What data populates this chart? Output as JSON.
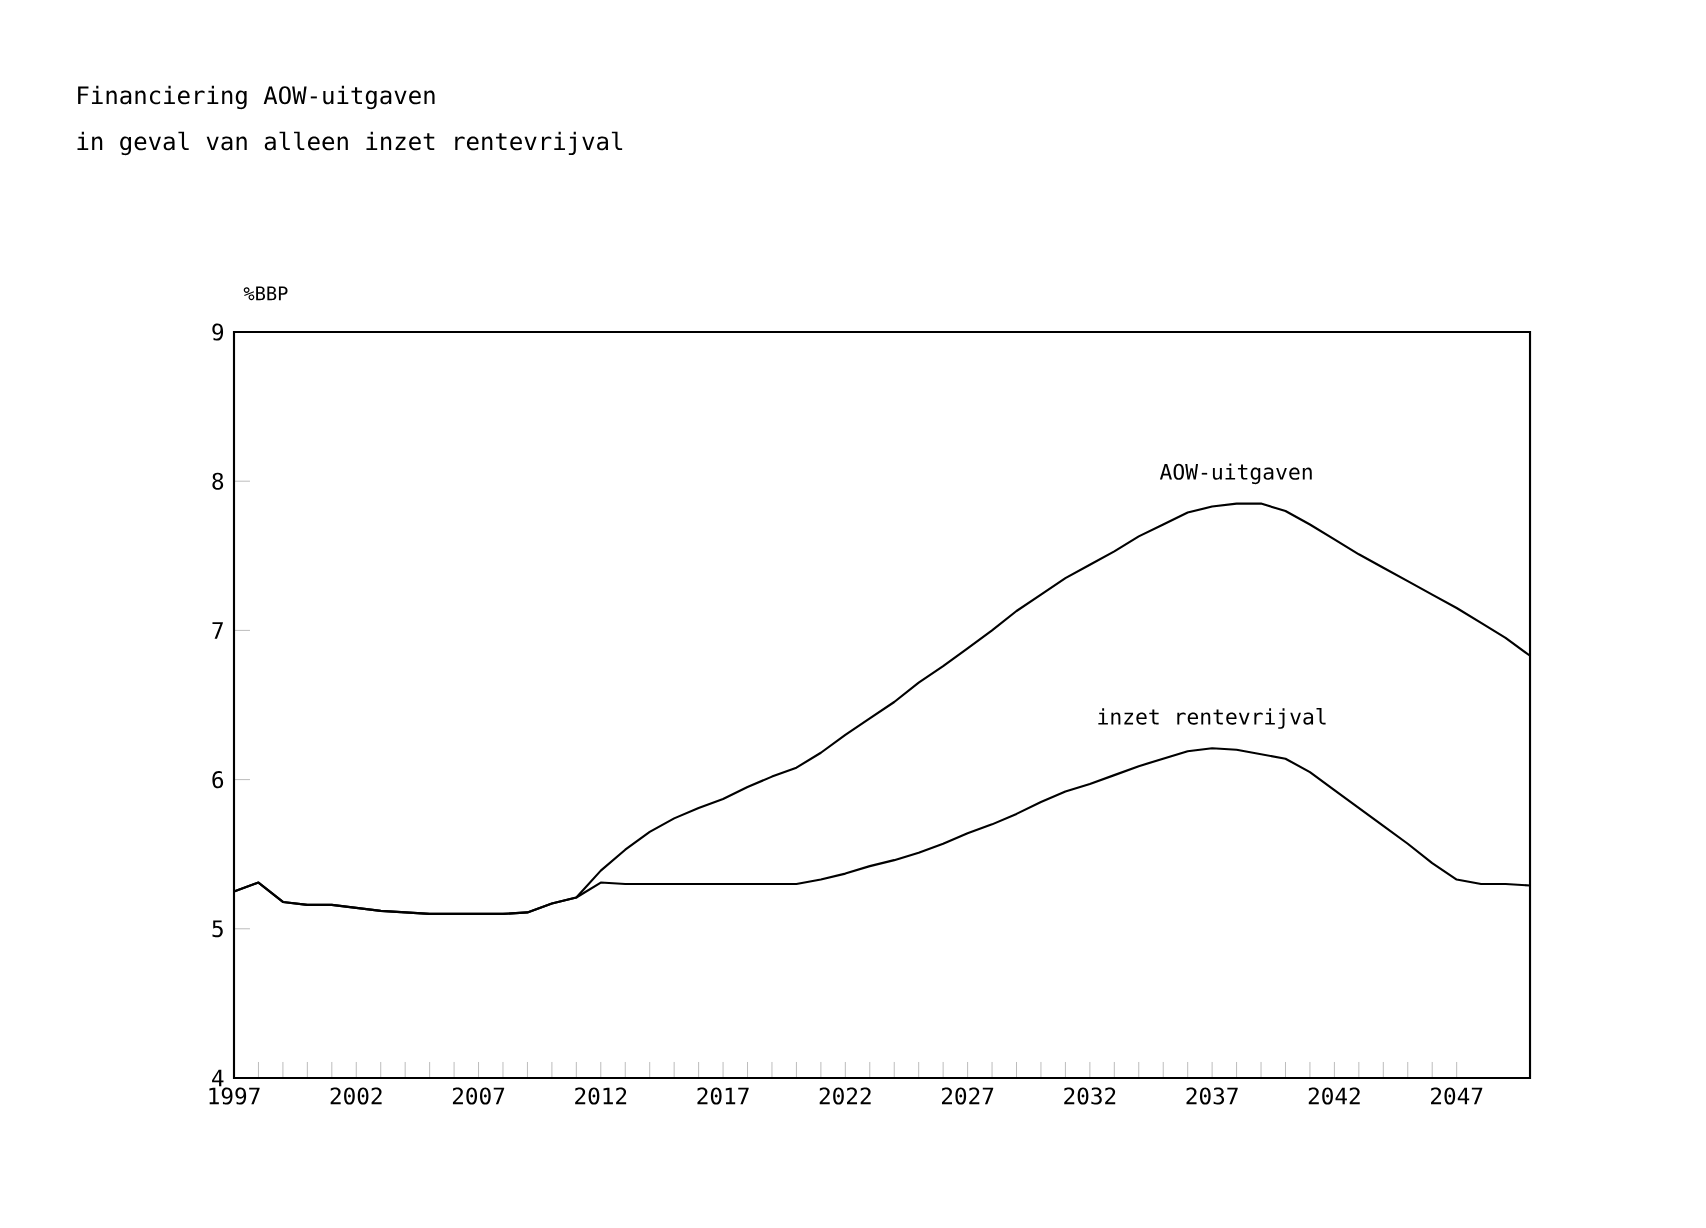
{
  "chart_data": {
    "type": "line",
    "title": "Financiering AOW-uitgaven",
    "subtitle": "in geval van alleen inzet rentevrijval",
    "ylabel": "%BBP",
    "x": [
      1997,
      1998,
      1999,
      2000,
      2001,
      2002,
      2003,
      2004,
      2005,
      2006,
      2007,
      2008,
      2009,
      2010,
      2011,
      2012,
      2013,
      2014,
      2015,
      2016,
      2017,
      2018,
      2019,
      2020,
      2021,
      2022,
      2023,
      2024,
      2025,
      2026,
      2027,
      2028,
      2029,
      2030,
      2031,
      2032,
      2033,
      2034,
      2035,
      2036,
      2037,
      2038,
      2039,
      2040,
      2041,
      2042,
      2043,
      2044,
      2045,
      2046,
      2047,
      2048,
      2049,
      2050
    ],
    "series": [
      {
        "name": "AOW-uitgaven",
        "color": "#000000",
        "values": [
          5.25,
          5.31,
          5.18,
          5.16,
          5.16,
          5.14,
          5.12,
          5.11,
          5.1,
          5.1,
          5.1,
          5.1,
          5.11,
          5.17,
          5.21,
          5.39,
          5.53,
          5.65,
          5.74,
          5.81,
          5.87,
          5.95,
          6.02,
          6.08,
          6.18,
          6.3,
          6.41,
          6.52,
          6.65,
          6.76,
          6.88,
          7.0,
          7.13,
          7.24,
          7.35,
          7.44,
          7.53,
          7.63,
          7.71,
          7.79,
          7.83,
          7.85,
          7.85,
          7.8,
          7.71,
          7.61,
          7.51,
          7.42,
          7.33,
          7.24,
          7.15,
          7.05,
          6.95,
          6.83
        ]
      },
      {
        "name": "inzet rentevrijval",
        "color": "#000000",
        "values": [
          5.25,
          5.31,
          5.18,
          5.16,
          5.16,
          5.14,
          5.12,
          5.11,
          5.1,
          5.1,
          5.1,
          5.1,
          5.11,
          5.17,
          5.21,
          5.31,
          5.3,
          5.3,
          5.3,
          5.3,
          5.3,
          5.3,
          5.3,
          5.3,
          5.33,
          5.37,
          5.42,
          5.46,
          5.51,
          5.57,
          5.64,
          5.7,
          5.77,
          5.85,
          5.92,
          5.97,
          6.03,
          6.09,
          6.14,
          6.19,
          6.21,
          6.2,
          6.17,
          6.14,
          6.05,
          5.93,
          5.81,
          5.69,
          5.57,
          5.44,
          5.33,
          5.3,
          5.3,
          5.29
        ]
      }
    ],
    "xlim": [
      1997,
      2050
    ],
    "ylim": [
      4,
      9
    ],
    "xticks": [
      1997,
      2002,
      2007,
      2012,
      2017,
      2022,
      2027,
      2032,
      2037,
      2042,
      2047
    ],
    "yticks": [
      4,
      5,
      6,
      7,
      8,
      9
    ],
    "grid": false,
    "marker": "none",
    "line_style": "solid"
  }
}
